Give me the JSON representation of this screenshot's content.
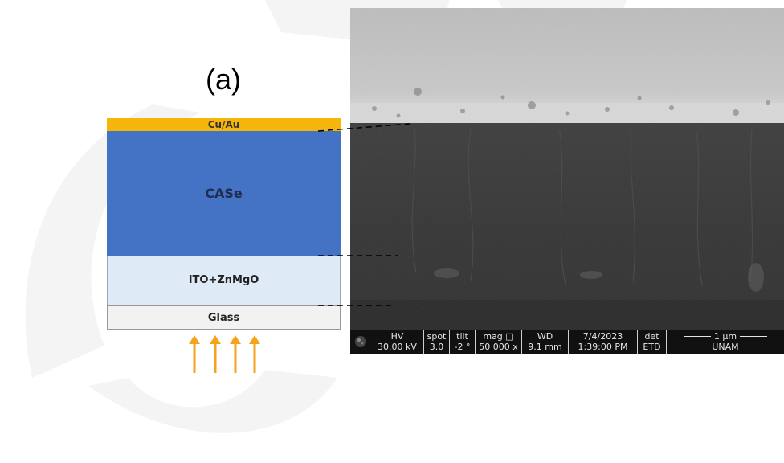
{
  "panel_label": "(a)",
  "layers": {
    "top": {
      "label": "Cu/Au",
      "color": "#f5b50a"
    },
    "absorber": {
      "label": "CASe",
      "color": "#4472c4"
    },
    "tco": {
      "label": "ITO+ZnMgO",
      "color": "#deebf7"
    },
    "substrate": {
      "label": "Glass",
      "color": "#f2f2f2"
    }
  },
  "arrow_color": "#f7a21b",
  "sem_databar": {
    "hv": {
      "label": "HV",
      "value": "30.00 kV"
    },
    "spot": {
      "label": "spot",
      "value": "3.0"
    },
    "tilt": {
      "label": "tilt",
      "value": "-2 °"
    },
    "mag": {
      "label": "mag □",
      "value": "50 000 x"
    },
    "wd": {
      "label": "WD",
      "value": "9.1 mm"
    },
    "date": {
      "label": "7/4/2023",
      "value": "1:39:00 PM"
    },
    "det": {
      "label": "det",
      "value": "ETD"
    },
    "scale": {
      "label": "1 µm",
      "value": "UNAM"
    }
  }
}
